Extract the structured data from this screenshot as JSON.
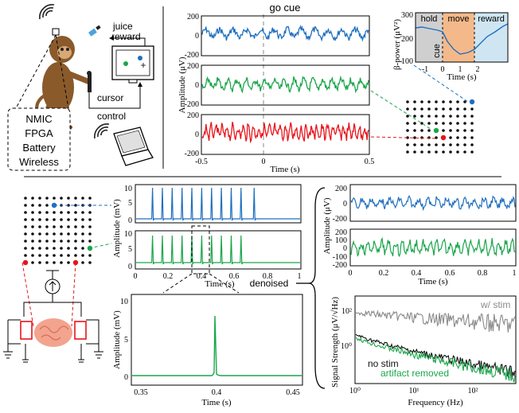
{
  "setup": {
    "juice_reward": [
      "juice",
      "reward"
    ],
    "cursor_control": [
      "cursor",
      "control"
    ],
    "device_specs": [
      "NMIC",
      "FPGA",
      "Battery",
      "Wireless"
    ]
  },
  "task_panel": {
    "go_cue": "go cue",
    "y_label": "Amplitude (μV)",
    "x_label": "Time (s)",
    "x_ticks": [
      "-0.5",
      "0",
      "0.5"
    ],
    "y_ticks": [
      "200",
      "0",
      "-200"
    ],
    "colors": {
      "blue": "#1f6fbf",
      "green": "#1aa64a",
      "red": "#e8141b"
    }
  },
  "beta_panel": {
    "y_label": "β-power (μV²)",
    "x_label": "Time (s)",
    "phases": [
      "hold",
      "move",
      "reward"
    ],
    "cue": "cue",
    "y_ticks": [
      "300",
      "200",
      "100"
    ],
    "x_ticks": [
      "-1",
      "0",
      "1",
      "2"
    ],
    "colors": {
      "hold": "#cfcfcf",
      "move": "#f4b98a",
      "reward": "#cfe6f2"
    }
  },
  "stim_panel": {
    "y_label": "Amplitude (mV)",
    "x_label": "Time (s)",
    "x_ticks": [
      "0",
      "0.2",
      "0.4",
      "0.6",
      "0.8",
      "1"
    ],
    "top_y_ticks": [
      "10",
      "5",
      "0"
    ],
    "bot_y_ticks": [
      "10",
      "5",
      "0"
    ]
  },
  "zoom_panel": {
    "y_label": "Amplitude (mV)",
    "x_label": "Time (s)",
    "y_ticks": [
      "10",
      "5",
      "0"
    ],
    "x_ticks": [
      "0.35",
      "0.4",
      "0.45"
    ]
  },
  "denoised_panel": {
    "label": "denoised",
    "y_label": "Amplitude (μV)",
    "x_label": "Time (s)",
    "top_y_ticks": [
      "200",
      "0",
      "-200"
    ],
    "bot_y_ticks": [
      "200",
      "100",
      "0",
      "-100",
      "-200"
    ],
    "x_ticks": [
      "0",
      "0.2",
      "0.4",
      "0.6",
      "0.8",
      "1"
    ]
  },
  "spectrum_panel": {
    "y_label": "Signal Strength (μV/√Hz)",
    "x_label": "Frequency (Hz)",
    "legend": {
      "with_stim": "w/ stim",
      "no_stim": "no stim",
      "removed": "artifact removed"
    },
    "x_ticks": [
      "10⁰",
      "10¹",
      "10²"
    ],
    "y_ticks": [
      "10²",
      "10⁰"
    ],
    "colors": {
      "with_stim": "#8a8a8a",
      "no_stim": "#111111",
      "removed": "#1aa64a"
    }
  }
}
